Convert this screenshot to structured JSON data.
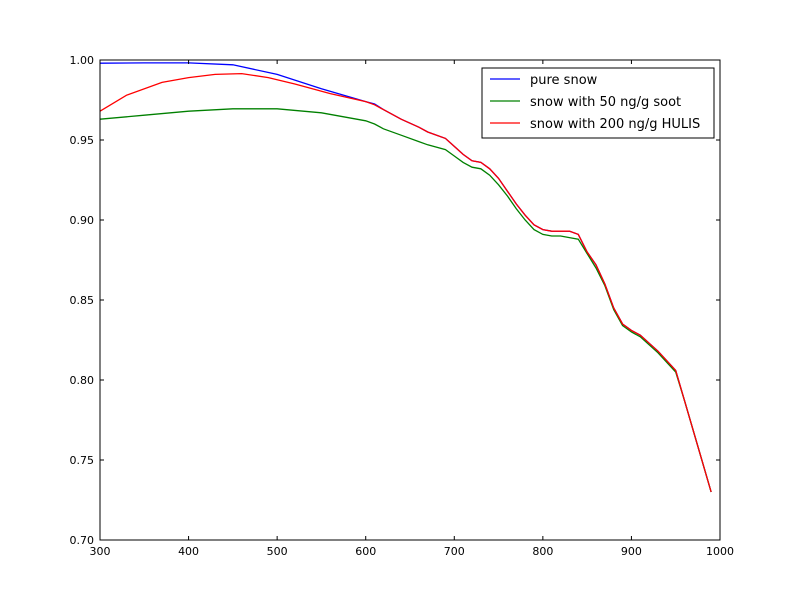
{
  "chart_data": {
    "type": "line",
    "xlim": [
      300,
      1000
    ],
    "ylim": [
      0.7,
      1.0
    ],
    "x_ticks": [
      "300",
      "400",
      "500",
      "600",
      "700",
      "800",
      "900",
      "1000"
    ],
    "y_ticks": [
      "0.70",
      "0.75",
      "0.80",
      "0.85",
      "0.90",
      "0.95",
      "1.00"
    ],
    "legend_position": "top-right",
    "series": [
      {
        "name": "pure snow",
        "color": "#0000ff",
        "points": [
          [
            300,
            0.998
          ],
          [
            350,
            0.9982
          ],
          [
            400,
            0.9982
          ],
          [
            450,
            0.997
          ],
          [
            500,
            0.991
          ],
          [
            550,
            0.982
          ],
          [
            600,
            0.974
          ],
          [
            610,
            0.9725
          ],
          [
            620,
            0.969
          ],
          [
            640,
            0.963
          ],
          [
            660,
            0.958
          ],
          [
            670,
            0.955
          ],
          [
            690,
            0.951
          ],
          [
            700,
            0.946
          ],
          [
            710,
            0.941
          ],
          [
            720,
            0.937
          ],
          [
            730,
            0.936
          ],
          [
            740,
            0.932
          ],
          [
            750,
            0.926
          ],
          [
            760,
            0.918
          ],
          [
            770,
            0.91
          ],
          [
            780,
            0.903
          ],
          [
            790,
            0.897
          ],
          [
            800,
            0.894
          ],
          [
            810,
            0.893
          ],
          [
            820,
            0.893
          ],
          [
            830,
            0.893
          ],
          [
            840,
            0.891
          ],
          [
            850,
            0.88
          ],
          [
            860,
            0.872
          ],
          [
            870,
            0.86
          ],
          [
            880,
            0.845
          ],
          [
            890,
            0.835
          ],
          [
            900,
            0.831
          ],
          [
            910,
            0.828
          ],
          [
            920,
            0.823
          ],
          [
            930,
            0.818
          ],
          [
            940,
            0.812
          ],
          [
            950,
            0.806
          ],
          [
            960,
            0.787
          ],
          [
            970,
            0.768
          ],
          [
            980,
            0.749
          ],
          [
            990,
            0.73
          ]
        ]
      },
      {
        "name": "snow with 50 ng/g soot",
        "color": "#008000",
        "points": [
          [
            300,
            0.963
          ],
          [
            350,
            0.9655
          ],
          [
            400,
            0.968
          ],
          [
            450,
            0.9695
          ],
          [
            500,
            0.9695
          ],
          [
            550,
            0.967
          ],
          [
            600,
            0.962
          ],
          [
            610,
            0.96
          ],
          [
            620,
            0.957
          ],
          [
            640,
            0.953
          ],
          [
            660,
            0.949
          ],
          [
            670,
            0.947
          ],
          [
            690,
            0.944
          ],
          [
            700,
            0.94
          ],
          [
            710,
            0.936
          ],
          [
            720,
            0.933
          ],
          [
            730,
            0.932
          ],
          [
            740,
            0.928
          ],
          [
            750,
            0.922
          ],
          [
            760,
            0.915
          ],
          [
            770,
            0.907
          ],
          [
            780,
            0.9
          ],
          [
            790,
            0.894
          ],
          [
            800,
            0.891
          ],
          [
            810,
            0.89
          ],
          [
            820,
            0.89
          ],
          [
            830,
            0.889
          ],
          [
            840,
            0.888
          ],
          [
            850,
            0.879
          ],
          [
            860,
            0.87
          ],
          [
            870,
            0.859
          ],
          [
            880,
            0.844
          ],
          [
            890,
            0.834
          ],
          [
            900,
            0.83
          ],
          [
            910,
            0.827
          ],
          [
            920,
            0.822
          ],
          [
            930,
            0.817
          ],
          [
            940,
            0.811
          ],
          [
            950,
            0.805
          ],
          [
            960,
            0.787
          ],
          [
            970,
            0.768
          ],
          [
            980,
            0.749
          ],
          [
            990,
            0.73
          ]
        ]
      },
      {
        "name": "snow with 200 ng/g HULIS",
        "color": "#ff0000",
        "points": [
          [
            300,
            0.968
          ],
          [
            330,
            0.978
          ],
          [
            370,
            0.986
          ],
          [
            400,
            0.989
          ],
          [
            430,
            0.991
          ],
          [
            460,
            0.9915
          ],
          [
            490,
            0.989
          ],
          [
            520,
            0.985
          ],
          [
            560,
            0.979
          ],
          [
            600,
            0.974
          ],
          [
            610,
            0.972
          ],
          [
            620,
            0.969
          ],
          [
            640,
            0.963
          ],
          [
            660,
            0.958
          ],
          [
            670,
            0.955
          ],
          [
            690,
            0.951
          ],
          [
            700,
            0.946
          ],
          [
            710,
            0.941
          ],
          [
            720,
            0.937
          ],
          [
            730,
            0.936
          ],
          [
            740,
            0.932
          ],
          [
            750,
            0.926
          ],
          [
            760,
            0.918
          ],
          [
            770,
            0.91
          ],
          [
            780,
            0.903
          ],
          [
            790,
            0.897
          ],
          [
            800,
            0.894
          ],
          [
            810,
            0.893
          ],
          [
            820,
            0.893
          ],
          [
            830,
            0.893
          ],
          [
            840,
            0.891
          ],
          [
            850,
            0.88
          ],
          [
            860,
            0.872
          ],
          [
            870,
            0.86
          ],
          [
            880,
            0.845
          ],
          [
            890,
            0.835
          ],
          [
            900,
            0.831
          ],
          [
            910,
            0.828
          ],
          [
            920,
            0.823
          ],
          [
            930,
            0.818
          ],
          [
            940,
            0.812
          ],
          [
            950,
            0.806
          ],
          [
            960,
            0.787
          ],
          [
            970,
            0.768
          ],
          [
            980,
            0.749
          ],
          [
            990,
            0.73
          ]
        ]
      }
    ]
  }
}
